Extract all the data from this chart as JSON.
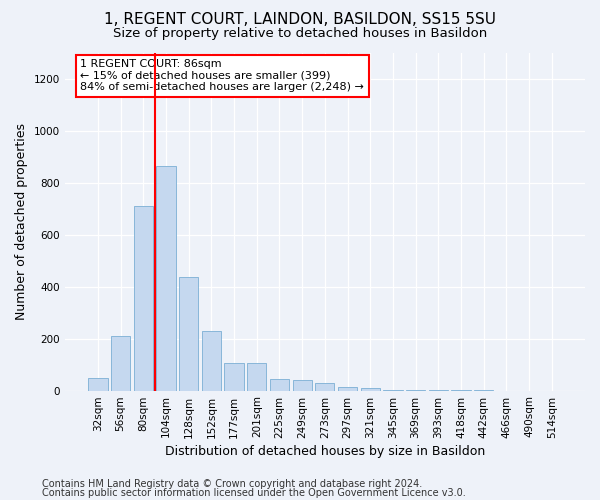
{
  "title": "1, REGENT COURT, LAINDON, BASILDON, SS15 5SU",
  "subtitle": "Size of property relative to detached houses in Basildon",
  "xlabel": "Distribution of detached houses by size in Basildon",
  "ylabel": "Number of detached properties",
  "categories": [
    "32sqm",
    "56sqm",
    "80sqm",
    "104sqm",
    "128sqm",
    "152sqm",
    "177sqm",
    "201sqm",
    "225sqm",
    "249sqm",
    "273sqm",
    "297sqm",
    "321sqm",
    "345sqm",
    "369sqm",
    "393sqm",
    "418sqm",
    "442sqm",
    "466sqm",
    "490sqm",
    "514sqm"
  ],
  "values": [
    50,
    210,
    710,
    865,
    435,
    230,
    105,
    105,
    45,
    42,
    28,
    15,
    8,
    4,
    2,
    2,
    1,
    1,
    0,
    0,
    0
  ],
  "bar_color": "#c5d8ef",
  "bar_edge_color": "#7bafd4",
  "vline_color": "red",
  "vline_position": 2.5,
  "annotation_text": "1 REGENT COURT: 86sqm\n← 15% of detached houses are smaller (399)\n84% of semi-detached houses are larger (2,248) →",
  "annotation_box_color": "white",
  "annotation_box_edge_color": "red",
  "ylim": [
    0,
    1300
  ],
  "yticks": [
    0,
    200,
    400,
    600,
    800,
    1000,
    1200
  ],
  "footer1": "Contains HM Land Registry data © Crown copyright and database right 2024.",
  "footer2": "Contains public sector information licensed under the Open Government Licence v3.0.",
  "bg_color": "#eef2f9",
  "plot_bg_color": "#eef2f9",
  "title_fontsize": 11,
  "subtitle_fontsize": 9.5,
  "tick_fontsize": 7.5,
  "ylabel_fontsize": 9,
  "xlabel_fontsize": 9,
  "footer_fontsize": 7,
  "annotation_fontsize": 8
}
